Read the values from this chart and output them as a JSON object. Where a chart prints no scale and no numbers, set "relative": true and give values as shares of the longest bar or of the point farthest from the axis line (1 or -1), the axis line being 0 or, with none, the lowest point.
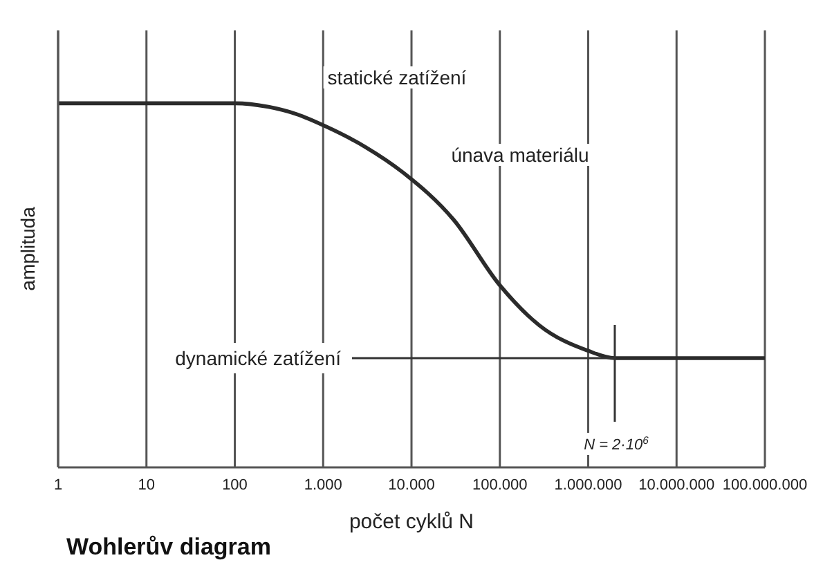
{
  "chart_data": {
    "type": "line",
    "title": "Wohlerův diagram",
    "xlabel": "počet cyklů N",
    "ylabel": "amplituda",
    "log": "x",
    "relative": true,
    "grid": true,
    "marker": "none",
    "line_style": "solid",
    "xlim": [
      1,
      100000000
    ],
    "xticks": [
      1,
      10,
      100,
      {
        "value": 1000,
        "label": "1.000"
      },
      {
        "value": 10000,
        "label": "10.000"
      },
      {
        "value": 100000,
        "label": "100.000"
      },
      {
        "value": 1000000,
        "label": "1.000.000"
      },
      {
        "value": 10000000,
        "label": "10.000.000"
      },
      {
        "value": 100000000,
        "label": "100.000.000"
      }
    ],
    "series": [
      {
        "color": "#2b2b2b",
        "x": [
          1,
          10,
          100,
          240,
          500,
          1100,
          3000,
          8000,
          30000,
          100000,
          280000,
          1000000,
          2000000,
          10000000,
          100000000
        ],
        "values": [
          1,
          1,
          1,
          0.99,
          0.97,
          0.935,
          0.88,
          0.81,
          0.68,
          0.5,
          0.39,
          0.32,
          0.3,
          0.3,
          0.3
        ]
      }
    ],
    "annotations": [
      "statické zatížení",
      "únava materiálu",
      "dynamické zatížení",
      "N = 2·10$^{6}$"
    ]
  }
}
